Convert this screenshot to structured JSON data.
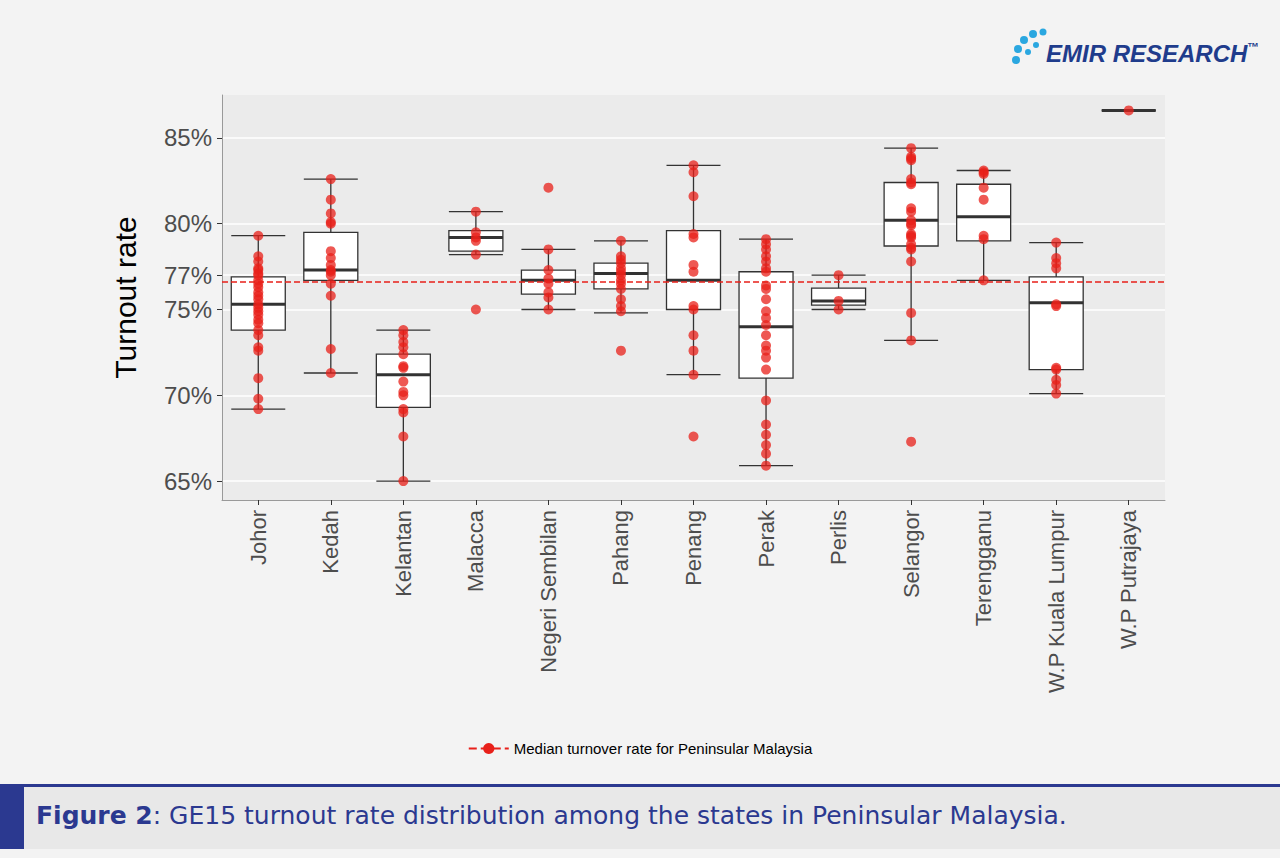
{
  "chart_data": {
    "type": "boxplot",
    "logo": "EMIR RESEARCH",
    "logo_mark": "™",
    "caption_label": "Figure 2",
    "caption_text": ": GE15 turnout rate distribution among the states in Peninsular Malaysia.",
    "ylabel": "Turnout rate",
    "categories": [
      "Johor",
      "Kedah",
      "Kelantan",
      "Malacca",
      "Negeri Sembilan",
      "Pahang",
      "Penang",
      "Perak",
      "Perlis",
      "Selangor",
      "Terengganu",
      "W.P Kuala Lumpur",
      "W.P Putrajaya"
    ],
    "boxes": [
      [
        69.2,
        73.8,
        75.3,
        76.9,
        79.3
      ],
      [
        71.3,
        76.7,
        77.3,
        79.5,
        82.6
      ],
      [
        65.0,
        69.3,
        71.2,
        72.4,
        73.8
      ],
      [
        78.2,
        78.4,
        79.2,
        79.6,
        80.7
      ],
      [
        75.0,
        75.9,
        76.7,
        77.3,
        78.5
      ],
      [
        74.8,
        76.2,
        77.1,
        77.7,
        79.0
      ],
      [
        71.2,
        75.0,
        76.7,
        79.6,
        83.4
      ],
      [
        65.9,
        71.0,
        74.0,
        77.2,
        79.1
      ],
      [
        75.0,
        75.25,
        75.5,
        76.25,
        77.0
      ],
      [
        73.2,
        78.7,
        80.2,
        82.4,
        84.4
      ],
      [
        76.7,
        79.0,
        80.4,
        82.3,
        83.1
      ],
      [
        70.1,
        71.5,
        75.4,
        76.9,
        78.9
      ],
      [
        86.6,
        86.6,
        86.6,
        86.6,
        86.6
      ]
    ],
    "points": [
      [
        79.3,
        78.1,
        77.8,
        77.4,
        77.3,
        77.1,
        77.0,
        76.7,
        76.5,
        76.3,
        76.0,
        75.8,
        75.6,
        75.3,
        75.1,
        74.9,
        74.7,
        74.4,
        74.2,
        73.8,
        73.5,
        72.8,
        72.6,
        71.0,
        69.8,
        69.2
      ],
      [
        82.6,
        81.4,
        80.6,
        80.1,
        80.0,
        78.4,
        78.0,
        77.6,
        77.3,
        77.2,
        77.0,
        76.5,
        75.8,
        72.7,
        71.3
      ],
      [
        73.8,
        73.5,
        73.1,
        72.8,
        72.4,
        71.7,
        71.6,
        70.8,
        70.2,
        70.0,
        69.2,
        69.0,
        67.6,
        65.0
      ],
      [
        80.7,
        79.5,
        79.2,
        79.0,
        78.2,
        75.0
      ],
      [
        82.1,
        78.5,
        77.3,
        76.8,
        76.5,
        76.0,
        75.7,
        75.0
      ],
      [
        79.0,
        78.1,
        77.9,
        77.7,
        77.4,
        77.2,
        77.0,
        76.7,
        76.5,
        76.2,
        75.6,
        75.2,
        74.9,
        72.6
      ],
      [
        83.4,
        83.0,
        81.6,
        79.4,
        79.2,
        77.6,
        77.2,
        75.2,
        75.0,
        73.5,
        72.6,
        71.2,
        67.6
      ],
      [
        79.1,
        78.8,
        78.5,
        78.1,
        77.8,
        77.4,
        77.2,
        76.4,
        76.2,
        75.6,
        74.9,
        74.5,
        74.1,
        73.5,
        72.9,
        72.6,
        72.2,
        71.5,
        69.7,
        68.3,
        67.7,
        67.1,
        66.6,
        65.9
      ],
      [
        77.0,
        75.5,
        75.0
      ],
      [
        84.4,
        83.9,
        83.8,
        83.7,
        82.6,
        82.4,
        82.3,
        80.9,
        80.7,
        80.2,
        80.0,
        79.9,
        79.4,
        79.3,
        79.2,
        78.8,
        78.6,
        78.5,
        77.8,
        74.8,
        73.2,
        67.3
      ],
      [
        83.1,
        83.0,
        82.9,
        82.1,
        81.4,
        79.3,
        79.1,
        76.7
      ],
      [
        78.9,
        78.0,
        77.7,
        77.4,
        75.3,
        75.2,
        71.6,
        71.5,
        70.9,
        70.6,
        70.1
      ],
      [
        86.6
      ]
    ],
    "color": "#e8201a",
    "reference": {
      "name": "Median turnover rate for Peninsular Malaysia",
      "value": 76.6,
      "color": "#e8201a",
      "line_style": "dashed"
    },
    "ylim": [
      63.9,
      87.5
    ],
    "yticks": [
      {
        "value": 65,
        "label": "65%"
      },
      {
        "value": 70,
        "label": "70%"
      },
      {
        "value": 75,
        "label": "75%"
      },
      {
        "value": 77,
        "label": "77%"
      },
      {
        "value": 80,
        "label": "80%"
      },
      {
        "value": 85,
        "label": "85%"
      }
    ],
    "grid": true
  }
}
